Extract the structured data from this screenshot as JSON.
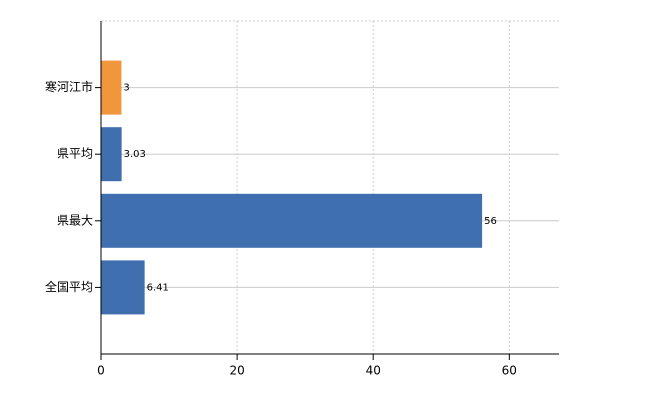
{
  "chart_data": {
    "type": "barh",
    "categories": [
      "寒河江市",
      "県平均",
      "県最大",
      "全国平均"
    ],
    "values": [
      3,
      3.03,
      56,
      6.41
    ],
    "colors": [
      "#f0963c",
      "#3f6fae",
      "#3f6fae",
      "#3f6fae"
    ],
    "xlim": [
      0,
      67.3
    ],
    "xticks": [
      0,
      20,
      40,
      60
    ],
    "grid": true
  }
}
